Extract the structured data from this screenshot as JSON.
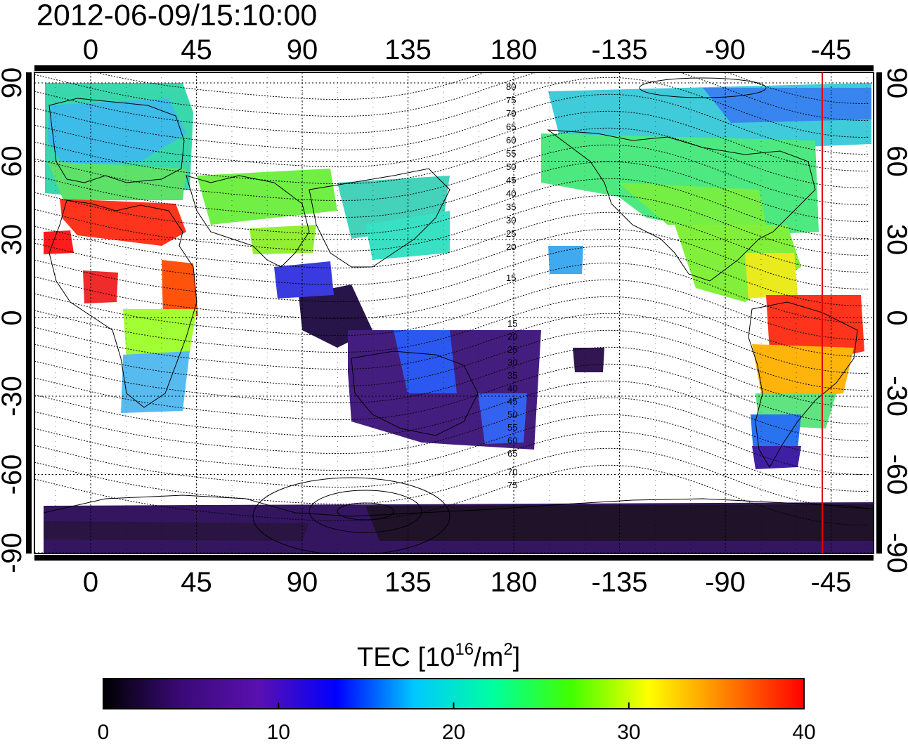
{
  "title": "2012-06-09/15:10:00",
  "map": {
    "lon_ticks_top": [
      "0",
      "45",
      "90",
      "135",
      "180",
      "-135",
      "-90",
      "-45"
    ],
    "lon_ticks_bottom": [
      "0",
      "45",
      "90",
      "135",
      "180",
      "-135",
      "-90",
      "-45"
    ],
    "lat_ticks_left": [
      "90",
      "60",
      "30",
      "0",
      "-30",
      "-60",
      "-90"
    ],
    "lat_ticks_right": [
      "90",
      "60",
      "30",
      "0",
      "-30",
      "-60",
      "-90"
    ],
    "contour_labels_north": [
      "80",
      "75",
      "70",
      "65",
      "60",
      "55",
      "50",
      "45",
      "40",
      "35",
      "30",
      "25",
      "20",
      "15"
    ],
    "contour_labels_south": [
      "15",
      "20",
      "25",
      "30",
      "35",
      "40",
      "45",
      "50",
      "55",
      "60",
      "65",
      "70",
      "75"
    ],
    "marker_line_color": "#e00000"
  },
  "colorbar": {
    "label_text": "TEC  [10",
    "label_sup1": "16",
    "label_mid": "/m",
    "label_sup2": "2",
    "label_end": "]",
    "ticks": [
      "0",
      "10",
      "20",
      "30",
      "40"
    ],
    "stops": [
      "#000000",
      "#3a0a78",
      "#5a10b0",
      "#0000ff",
      "#00c8ff",
      "#00ffa0",
      "#40ff00",
      "#ffff00",
      "#ff8000",
      "#ff0000"
    ]
  }
}
